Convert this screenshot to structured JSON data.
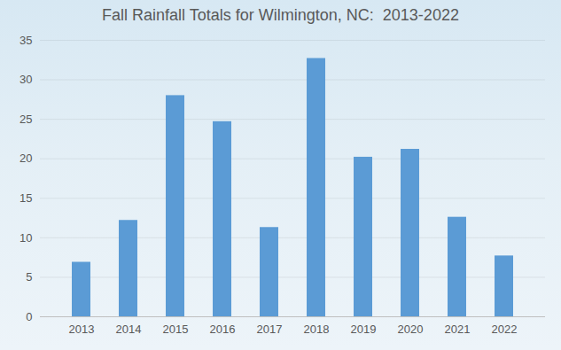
{
  "chart_data": {
    "type": "bar",
    "title": "Fall Rainfall Totals for Wilmington, NC:  2013-2022",
    "categories": [
      "2013",
      "2014",
      "2015",
      "2016",
      "2017",
      "2018",
      "2019",
      "2020",
      "2021",
      "2022"
    ],
    "values": [
      6.9,
      12.2,
      28.0,
      24.7,
      11.3,
      32.7,
      20.2,
      21.2,
      12.6,
      7.7
    ],
    "color": "#5b9bd5",
    "ylim": [
      0,
      35
    ],
    "yticks": [
      0,
      5,
      10,
      15,
      20,
      25,
      30,
      35
    ],
    "grid": true
  }
}
